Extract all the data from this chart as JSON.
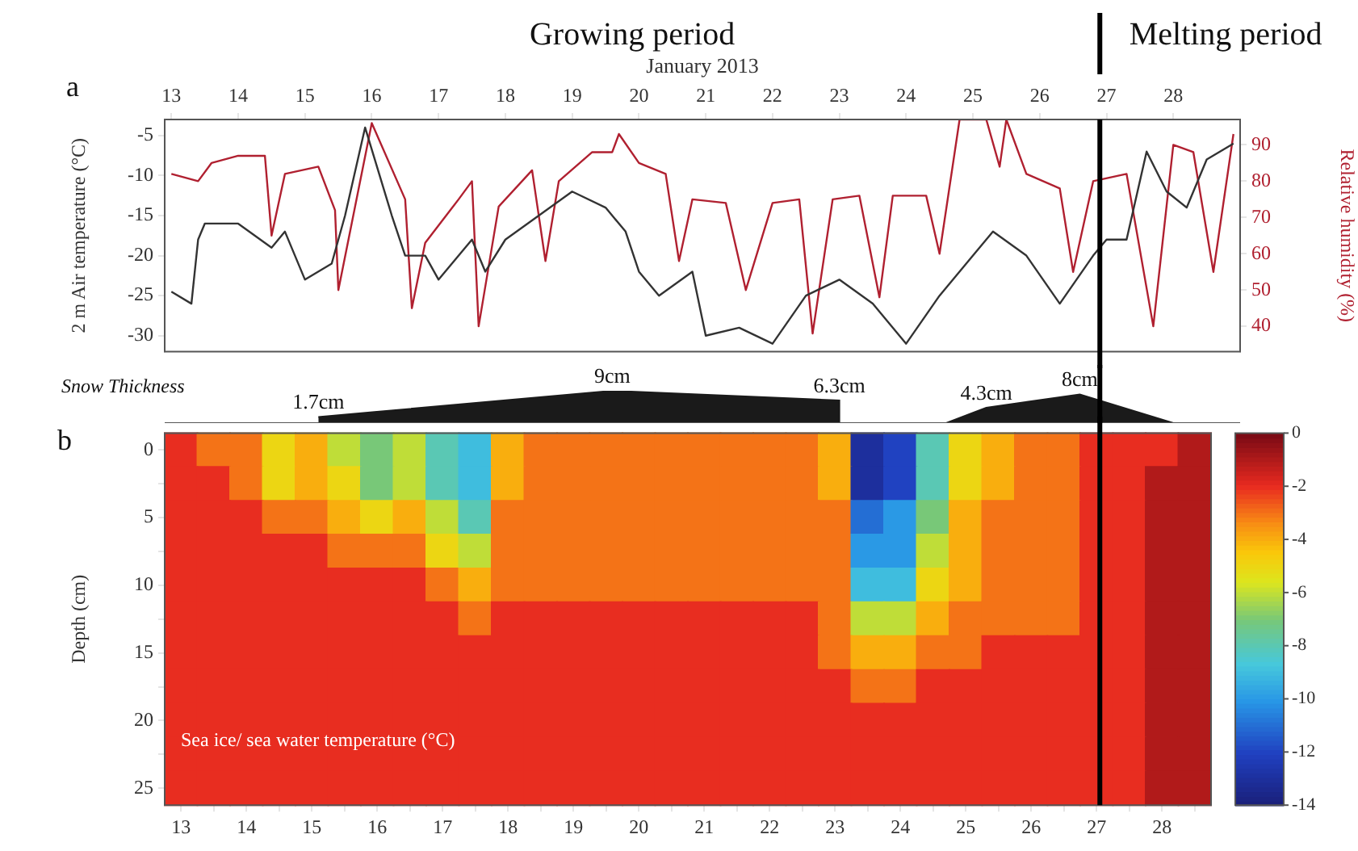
{
  "chart_data": [
    {
      "type": "line",
      "annotations": [
        "Growing period",
        "Melting period",
        "a"
      ],
      "xlabel": "January 2013",
      "ylabel": "2 m Air temperature (°C)",
      "y2label": "Relative humidity (%)",
      "xlim": [
        12.9,
        29
      ],
      "xticks": [
        13,
        14,
        15,
        16,
        17,
        18,
        19,
        20,
        21,
        22,
        23,
        24,
        25,
        26,
        27,
        28
      ],
      "ylim": [
        -32,
        -3
      ],
      "yticks": [
        -5,
        -10,
        -15,
        -20,
        -25,
        -30
      ],
      "y2lim": [
        33,
        97
      ],
      "y2ticks": [
        90,
        80,
        70,
        60,
        50,
        40
      ],
      "grid": false,
      "ref_lines": [
        {
          "axis": "x",
          "value": 26.9,
          "color": "#000000"
        }
      ],
      "series": [
        {
          "color": "#333333",
          "x": [
            13,
            13.3,
            13.4,
            13.5,
            14,
            14.5,
            14.7,
            15,
            15.4,
            15.6,
            15.9,
            16.3,
            16.5,
            16.8,
            17,
            17.5,
            17.7,
            18,
            18.5,
            19,
            19.5,
            19.8,
            20,
            20.3,
            20.8,
            21,
            21.5,
            22,
            22.5,
            23,
            23.5,
            24,
            24.5,
            25,
            25.3,
            25.8,
            26.3,
            26.8,
            27,
            27.3,
            27.6,
            27.9,
            28.2,
            28.5,
            28.9
          ],
          "values": [
            -24.5,
            -26,
            -18,
            -16,
            -16,
            -19,
            -17,
            -23,
            -21,
            -15,
            -4,
            -15,
            -20,
            -20,
            -23,
            -18,
            -22,
            -18,
            -15,
            -12,
            -14,
            -17,
            -22,
            -25,
            -22,
            -30,
            -29,
            -31,
            -25,
            -23,
            -26,
            -31,
            -25,
            -20,
            -17,
            -20,
            -26,
            -20,
            -18,
            -18,
            -7,
            -12,
            -14,
            -8,
            -6
          ]
        },
        {
          "color": "#b02030",
          "axis": "y2",
          "x": [
            13,
            13.4,
            13.6,
            14,
            14.4,
            14.5,
            14.7,
            15.2,
            15.45,
            15.5,
            16,
            16.5,
            16.6,
            16.8,
            17.3,
            17.5,
            17.6,
            17.9,
            18.4,
            18.6,
            18.8,
            19.3,
            19.6,
            19.7,
            20,
            20.4,
            20.6,
            20.8,
            21.3,
            21.6,
            22,
            22.4,
            22.6,
            22.9,
            23.3,
            23.6,
            23.8,
            24.3,
            24.5,
            24.8,
            25.2,
            25.4,
            25.5,
            25.8,
            26.3,
            26.5,
            26.8,
            27.3,
            27.7,
            28,
            28.3,
            28.6,
            28.9
          ],
          "values": [
            82,
            80,
            85,
            87,
            87,
            65,
            82,
            84,
            72,
            50,
            96,
            75,
            45,
            63,
            75,
            80,
            40,
            73,
            83,
            58,
            80,
            88,
            88,
            93,
            85,
            82,
            58,
            75,
            74,
            50,
            74,
            75,
            38,
            75,
            76,
            48,
            76,
            76,
            60,
            97,
            97,
            84,
            97,
            82,
            78,
            55,
            80,
            82,
            40,
            90,
            88,
            55,
            93
          ]
        }
      ]
    },
    {
      "type": "area",
      "ylabel": "Snow Thickness",
      "xlim": [
        12.9,
        29
      ],
      "ref_lines": [
        {
          "axis": "x",
          "value": 26.9,
          "color": "#000000"
        }
      ],
      "series": [
        {
          "color": "#1a1a1a",
          "x": [
            15.2,
            19.6,
            23.0,
            23.0,
            24.6,
            25.2,
            26.6,
            28.0
          ],
          "values": [
            1.7,
            9,
            6.3,
            0,
            0,
            4.3,
            8,
            0
          ],
          "value_labels": [
            "1.7cm",
            "9cm",
            "6.3cm",
            null,
            null,
            "4.3cm",
            "8cm",
            null
          ]
        }
      ]
    },
    {
      "type": "heatmap",
      "annotations": [
        "Sea ice/ sea water temperature (°C)",
        "b"
      ],
      "ylabel": "Depth (cm)",
      "clim": [
        -14,
        0
      ],
      "cticks": [
        0,
        -2,
        -4,
        -6,
        -8,
        -10,
        -12,
        -14
      ],
      "categories": [
        "13",
        null,
        "14",
        null,
        "15",
        null,
        "16",
        null,
        "17",
        null,
        "18",
        null,
        "19",
        null,
        "20",
        null,
        "21",
        null,
        "22",
        null,
        "23",
        null,
        "24",
        null,
        "25",
        null,
        "26",
        null,
        "27",
        null,
        "28",
        null
      ],
      "y_categories": [
        "0",
        null,
        "5",
        null,
        "10",
        null,
        "15",
        null,
        "20",
        null,
        "25"
      ],
      "cells": [
        [
          -2,
          -3,
          -3,
          -5,
          -4,
          -6,
          -7,
          -6,
          -8,
          -9,
          -4,
          -3,
          -3,
          -3,
          -3,
          -3,
          -3,
          -3,
          -3,
          -3,
          -4,
          -13,
          -12,
          -8,
          -5,
          -4,
          -3,
          -3,
          -2,
          -2,
          -2,
          -1
        ],
        [
          -2,
          -2,
          -3,
          -5,
          -4,
          -5,
          -7,
          -6,
          -8,
          -9,
          -4,
          -3,
          -3,
          -3,
          -3,
          -3,
          -3,
          -3,
          -3,
          -3,
          -4,
          -13,
          -12,
          -8,
          -5,
          -4,
          -3,
          -3,
          -2,
          -2,
          -1,
          -1
        ],
        [
          -2,
          -2,
          -2,
          -3,
          -3,
          -4,
          -5,
          -4,
          -6,
          -8,
          -3,
          -3,
          -3,
          -3,
          -3,
          -3,
          -3,
          -3,
          -3,
          -3,
          -3,
          -11,
          -10,
          -7,
          -4,
          -3,
          -3,
          -3,
          -2,
          -2,
          -1,
          -1
        ],
        [
          -2,
          -2,
          -2,
          -2,
          -2,
          -3,
          -3,
          -3,
          -5,
          -6,
          -3,
          -3,
          -3,
          -3,
          -3,
          -3,
          -3,
          -3,
          -3,
          -3,
          -3,
          -10,
          -10,
          -6,
          -4,
          -3,
          -3,
          -3,
          -2,
          -2,
          -1,
          -1
        ],
        [
          -2,
          -2,
          -2,
          -2,
          -2,
          -2,
          -2,
          -2,
          -3,
          -4,
          -3,
          -3,
          -3,
          -3,
          -3,
          -3,
          -3,
          -3,
          -3,
          -3,
          -3,
          -9,
          -9,
          -5,
          -4,
          -3,
          -3,
          -3,
          -2,
          -2,
          -1,
          -1
        ],
        [
          -2,
          -2,
          -2,
          -2,
          -2,
          -2,
          -2,
          -2,
          -2,
          -3,
          -2,
          -2,
          -2,
          -2,
          -2,
          -2,
          -2,
          -2,
          -2,
          -2,
          -3,
          -6,
          -6,
          -4,
          -3,
          -3,
          -3,
          -3,
          -2,
          -2,
          -1,
          -1
        ],
        [
          -2,
          -2,
          -2,
          -2,
          -2,
          -2,
          -2,
          -2,
          -2,
          -2,
          -2,
          -2,
          -2,
          -2,
          -2,
          -2,
          -2,
          -2,
          -2,
          -2,
          -3,
          -4,
          -4,
          -3,
          -3,
          -2,
          -2,
          -2,
          -2,
          -2,
          -1,
          -1
        ],
        [
          -2,
          -2,
          -2,
          -2,
          -2,
          -2,
          -2,
          -2,
          -2,
          -2,
          -2,
          -2,
          -2,
          -2,
          -2,
          -2,
          -2,
          -2,
          -2,
          -2,
          -2,
          -3,
          -3,
          -2,
          -2,
          -2,
          -2,
          -2,
          -2,
          -2,
          -1,
          -1
        ],
        [
          -2,
          -2,
          -2,
          -2,
          -2,
          -2,
          -2,
          -2,
          -2,
          -2,
          -2,
          -2,
          -2,
          -2,
          -2,
          -2,
          -2,
          -2,
          -2,
          -2,
          -2,
          -2,
          -2,
          -2,
          -2,
          -2,
          -2,
          -2,
          -2,
          -2,
          -1,
          -1
        ],
        [
          -2,
          -2,
          -2,
          -2,
          -2,
          -2,
          -2,
          -2,
          -2,
          -2,
          -2,
          -2,
          -2,
          -2,
          -2,
          -2,
          -2,
          -2,
          -2,
          -2,
          -2,
          -2,
          -2,
          -2,
          -2,
          -2,
          -2,
          -2,
          -2,
          -2,
          -1,
          -1
        ],
        [
          -2,
          -2,
          -2,
          -2,
          -2,
          -2,
          -2,
          -2,
          -2,
          -2,
          -2,
          -2,
          -2,
          -2,
          -2,
          -2,
          -2,
          -2,
          -2,
          -2,
          -2,
          -2,
          -2,
          -2,
          -2,
          -2,
          -2,
          -2,
          -2,
          -2,
          -1,
          -1
        ]
      ]
    }
  ]
}
